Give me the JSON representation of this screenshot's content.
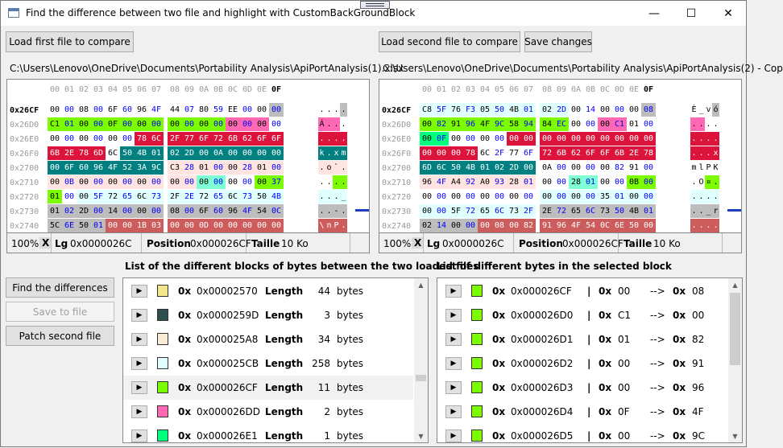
{
  "window": {
    "title": "Find the difference between two file and highlight with CustomBackGroundBlock",
    "minimize_glyph": "—",
    "maximize_glyph": "☐",
    "close_glyph": "✕"
  },
  "buttons": {
    "load_first": "Load first file to compare",
    "load_second": "Load second file to compare",
    "save_changes": "Save changes",
    "find_differences": "Find the differences",
    "save_to_file": "Save to file",
    "patch_second": "Patch second file"
  },
  "left": {
    "path": "C:\\Users\\Lenovo\\OneDrive\\Documents\\Portability Analysis\\ApiPortAnalysis(1).xlsx",
    "columns": [
      "00",
      "01",
      "02",
      "03",
      "04",
      "05",
      "06",
      "07",
      "08",
      "09",
      "0A",
      "0B",
      "0C",
      "0D",
      "0E",
      "0F"
    ],
    "rows": [
      {
        "offset": "0x26CF",
        "bytes": [
          "00",
          "00",
          "08",
          "00",
          "6F",
          "60",
          "96",
          "4F",
          "44",
          "07",
          "80",
          "59",
          "EE",
          "00",
          "00",
          "00"
        ],
        "bg": [
          "#ffffff",
          "#ffffff",
          "#ffffff",
          "#ffffff",
          "#ffffff",
          "#ffffff",
          "#ffffff",
          "#ffffff",
          "#ffffff",
          "#ffffff",
          "#ffffff",
          "#ffffff",
          "#ffffff",
          "#ffffff",
          "#ffffff",
          "#bdbdbd"
        ],
        "ascii": [
          ".",
          ".",
          ".",
          "."
        ]
      },
      {
        "offset": "0x26D0",
        "bytes": [
          "C1",
          "01",
          "00",
          "00",
          "0F",
          "00",
          "00",
          "00",
          "00",
          "00",
          "00",
          "00",
          "00",
          "00",
          "00",
          "00"
        ],
        "bg": [
          "#7cfc00",
          "#7cfc00",
          "#7cfc00",
          "#7cfc00",
          "#7cfc00",
          "#7cfc00",
          "#7cfc00",
          "#7cfc00",
          "#7cfc00",
          "#7cfc00",
          "#7cfc00",
          "#7cfc00",
          "#ff69b4",
          "#ff69b4",
          "#ff69b4",
          "#ffffff"
        ],
        "ascii": [
          "Á",
          ".",
          ".",
          "."
        ]
      },
      {
        "offset": "0x26E0",
        "bytes": [
          "00",
          "00",
          "00",
          "00",
          "00",
          "00",
          "78",
          "6C",
          "2F",
          "77",
          "6F",
          "72",
          "6B",
          "62",
          "6F",
          "6F"
        ],
        "bg": [
          "#ffffff",
          "#ffffff",
          "#ffffff",
          "#ffffff",
          "#ffffff",
          "#ffffff",
          "#dc143c",
          "#dc143c",
          "#dc143c",
          "#dc143c",
          "#dc143c",
          "#dc143c",
          "#dc143c",
          "#dc143c",
          "#dc143c",
          "#dc143c"
        ],
        "ascii": [
          ".",
          ".",
          ".",
          "."
        ]
      },
      {
        "offset": "0x26F0",
        "bytes": [
          "6B",
          "2E",
          "78",
          "6D",
          "6C",
          "50",
          "4B",
          "01",
          "02",
          "2D",
          "00",
          "0A",
          "00",
          "00",
          "00",
          "00"
        ],
        "bg": [
          "#dc143c",
          "#dc143c",
          "#dc143c",
          "#dc143c",
          "#ffffff",
          "#008080",
          "#008080",
          "#008080",
          "#008080",
          "#008080",
          "#008080",
          "#008080",
          "#008080",
          "#008080",
          "#008080",
          "#008080"
        ],
        "ascii": [
          "k",
          ".",
          "x",
          "m"
        ]
      },
      {
        "offset": "0x2700",
        "bytes": [
          "00",
          "6F",
          "60",
          "96",
          "4F",
          "52",
          "3A",
          "9C",
          "C3",
          "28",
          "01",
          "00",
          "00",
          "28",
          "01",
          "00"
        ],
        "bg": [
          "#008080",
          "#008080",
          "#008080",
          "#008080",
          "#008080",
          "#008080",
          "#008080",
          "#008080",
          "#ffe4e1",
          "#ffe4e1",
          "#ffe4e1",
          "#ffe4e1",
          "#ffe4e1",
          "#ffe4e1",
          "#ffe4e1",
          "#ffe4e1"
        ],
        "ascii": [
          ".",
          "o",
          "`",
          "."
        ]
      },
      {
        "offset": "0x2710",
        "bytes": [
          "00",
          "0B",
          "00",
          "00",
          "00",
          "00",
          "00",
          "00",
          "00",
          "00",
          "00",
          "00",
          "00",
          "00",
          "00",
          "37"
        ],
        "bg": [
          "#ffe4e1",
          "#ffe4e1",
          "#ffe4e1",
          "#ffe4e1",
          "#ffe4e1",
          "#ffe4e1",
          "#ffe4e1",
          "#ffe4e1",
          "#ffe4e1",
          "#ffe4e1",
          "#7fffd4",
          "#7fffd4",
          "#ffffff",
          "#ffffff",
          "#7cfc00",
          "#7cfc00"
        ],
        "ascii": [
          ".",
          ".",
          ".",
          "."
        ]
      },
      {
        "offset": "0x2720",
        "bytes": [
          "01",
          "00",
          "00",
          "5F",
          "72",
          "65",
          "6C",
          "73",
          "2F",
          "2E",
          "72",
          "65",
          "6C",
          "73",
          "50",
          "4B"
        ],
        "bg": [
          "#7cfc00",
          "#ffffff",
          "#e0ffff",
          "#e0ffff",
          "#e0ffff",
          "#e0ffff",
          "#e0ffff",
          "#e0ffff",
          "#e0ffff",
          "#e0ffff",
          "#e0ffff",
          "#e0ffff",
          "#e0ffff",
          "#e0ffff",
          "#e0ffff",
          "#e0ffff"
        ],
        "ascii": [
          ".",
          ".",
          ".",
          "_"
        ]
      },
      {
        "offset": "0x2730",
        "bytes": [
          "01",
          "02",
          "2D",
          "00",
          "14",
          "00",
          "00",
          "00",
          "08",
          "00",
          "6F",
          "60",
          "96",
          "4F",
          "54",
          "0C"
        ],
        "bg": [
          "#bdbdbd",
          "#bdbdbd",
          "#bdbdbd",
          "#bdbdbd",
          "#bdbdbd",
          "#bdbdbd",
          "#bdbdbd",
          "#bdbdbd",
          "#bdbdbd",
          "#bdbdbd",
          "#bdbdbd",
          "#bdbdbd",
          "#bdbdbd",
          "#bdbdbd",
          "#bdbdbd",
          "#bdbdbd"
        ],
        "ascii": [
          ".",
          ".",
          "-",
          "."
        ]
      },
      {
        "offset": "0x2740",
        "bytes": [
          "5C",
          "6E",
          "50",
          "01",
          "00",
          "00",
          "1B",
          "03",
          "00",
          "00",
          "0D",
          "00",
          "00",
          "00",
          "00",
          "00"
        ],
        "bg": [
          "#bdbdbd",
          "#bdbdbd",
          "#bdbdbd",
          "#bdbdbd",
          "#cd5c5c",
          "#cd5c5c",
          "#cd5c5c",
          "#cd5c5c",
          "#cd5c5c",
          "#cd5c5c",
          "#cd5c5c",
          "#cd5c5c",
          "#cd5c5c",
          "#cd5c5c",
          "#cd5c5c",
          "#cd5c5c"
        ],
        "ascii": [
          "\\",
          "n",
          "P",
          "."
        ]
      }
    ],
    "status": {
      "zoom": "100%",
      "close": "X",
      "lg_label": "Lg",
      "lg_value": "0x0000026C",
      "pos_label": "Position",
      "pos_value": "0x000026CF",
      "size_label": "Taille",
      "size_value": "10 Ko"
    }
  },
  "right": {
    "path": "C:\\Users\\Lenovo\\OneDrive\\Documents\\Portability Analysis\\ApiPortAnalysis(2) - Cop",
    "columns": [
      "00",
      "01",
      "02",
      "03",
      "04",
      "05",
      "06",
      "07",
      "08",
      "09",
      "0A",
      "0B",
      "0C",
      "0D",
      "0E",
      "0F"
    ],
    "rows": [
      {
        "offset": "0x26CF",
        "bytes": [
          "C8",
          "5F",
          "76",
          "F3",
          "05",
          "50",
          "4B",
          "01",
          "02",
          "2D",
          "00",
          "14",
          "00",
          "00",
          "00",
          "08"
        ],
        "bg": [
          "#e0ffff",
          "#e0ffff",
          "#e0ffff",
          "#e0ffff",
          "#e0ffff",
          "#e0ffff",
          "#e0ffff",
          "#e0ffff",
          "#e0ffff",
          "#e0ffff",
          "#ffffff",
          "#ffffff",
          "#ffffff",
          "#ffffff",
          "#ffffff",
          "#bdbdbd"
        ],
        "ascii": [
          "È",
          "_",
          "v",
          "ó"
        ]
      },
      {
        "offset": "0x26D0",
        "bytes": [
          "00",
          "82",
          "91",
          "96",
          "4F",
          "9C",
          "58",
          "94",
          "84",
          "EC",
          "00",
          "00",
          "00",
          "C1",
          "01",
          "00"
        ],
        "bg": [
          "#7cfc00",
          "#7cfc00",
          "#7cfc00",
          "#7cfc00",
          "#7cfc00",
          "#7cfc00",
          "#7cfc00",
          "#7cfc00",
          "#7cfc00",
          "#7cfc00",
          "#ffffff",
          "#ffffff",
          "#ff69b4",
          "#ff69b4",
          "#ffffff",
          "#ffffff"
        ],
        "ascii": [
          ".",
          ".",
          ".",
          "."
        ]
      },
      {
        "offset": "0x26E0",
        "bytes": [
          "00",
          "0F",
          "00",
          "00",
          "00",
          "00",
          "00",
          "00",
          "00",
          "00",
          "00",
          "00",
          "00",
          "00",
          "00",
          "00"
        ],
        "bg": [
          "#00ff7f",
          "#00ff7f",
          "#ffffff",
          "#ffffff",
          "#ffffff",
          "#ffffff",
          "#dc143c",
          "#dc143c",
          "#dc143c",
          "#dc143c",
          "#dc143c",
          "#dc143c",
          "#dc143c",
          "#dc143c",
          "#dc143c",
          "#dc143c"
        ],
        "ascii": [
          ".",
          ".",
          ".",
          "."
        ]
      },
      {
        "offset": "0x26F0",
        "bytes": [
          "00",
          "00",
          "00",
          "78",
          "6C",
          "2F",
          "77",
          "6F",
          "72",
          "6B",
          "62",
          "6F",
          "6F",
          "6B",
          "2E",
          "78"
        ],
        "bg": [
          "#dc143c",
          "#dc143c",
          "#dc143c",
          "#dc143c",
          "#ffffff",
          "#ffffff",
          "#ffffff",
          "#ffffff",
          "#dc143c",
          "#dc143c",
          "#dc143c",
          "#dc143c",
          "#dc143c",
          "#dc143c",
          "#dc143c",
          "#dc143c"
        ],
        "ascii": [
          ".",
          ".",
          ".",
          "x"
        ]
      },
      {
        "offset": "0x2700",
        "bytes": [
          "6D",
          "6C",
          "50",
          "4B",
          "01",
          "02",
          "2D",
          "00",
          "0A",
          "00",
          "00",
          "00",
          "00",
          "82",
          "91",
          "00"
        ],
        "bg": [
          "#008080",
          "#008080",
          "#008080",
          "#008080",
          "#008080",
          "#008080",
          "#008080",
          "#008080",
          "#ffffff",
          "#ffffff",
          "#ffffff",
          "#ffffff",
          "#ffffff",
          "#ffffff",
          "#ffffff",
          "#ffffff"
        ],
        "ascii": [
          "m",
          "l",
          "P",
          "K"
        ]
      },
      {
        "offset": "0x2710",
        "bytes": [
          "96",
          "4F",
          "A4",
          "92",
          "A0",
          "93",
          "28",
          "01",
          "00",
          "00",
          "28",
          "01",
          "00",
          "00",
          "0B",
          "00"
        ],
        "bg": [
          "#ffe4e1",
          "#ffe4e1",
          "#ffe4e1",
          "#ffe4e1",
          "#ffe4e1",
          "#ffe4e1",
          "#ffe4e1",
          "#ffe4e1",
          "#ffffff",
          "#ffffff",
          "#7fffd4",
          "#7fffd4",
          "#ffffff",
          "#ffffff",
          "#7cfc00",
          "#7cfc00"
        ],
        "ascii": [
          ".",
          "O",
          "¤",
          "."
        ]
      },
      {
        "offset": "0x2720",
        "bytes": [
          "00",
          "00",
          "00",
          "00",
          "00",
          "00",
          "00",
          "00",
          "00",
          "00",
          "00",
          "00",
          "35",
          "01",
          "00",
          "00"
        ],
        "bg": [
          "#ffffff",
          "#ffffff",
          "#ffffff",
          "#ffffff",
          "#ffffff",
          "#ffffff",
          "#ffffff",
          "#ffffff",
          "#e0ffff",
          "#e0ffff",
          "#e0ffff",
          "#e0ffff",
          "#e0ffff",
          "#e0ffff",
          "#e0ffff",
          "#e0ffff"
        ],
        "ascii": [
          ".",
          ".",
          ".",
          "."
        ]
      },
      {
        "offset": "0x2730",
        "bytes": [
          "00",
          "00",
          "5F",
          "72",
          "65",
          "6C",
          "73",
          "2F",
          "2E",
          "72",
          "65",
          "6C",
          "73",
          "50",
          "4B",
          "01"
        ],
        "bg": [
          "#e0ffff",
          "#e0ffff",
          "#e0ffff",
          "#e0ffff",
          "#e0ffff",
          "#e0ffff",
          "#e0ffff",
          "#e0ffff",
          "#bdbdbd",
          "#bdbdbd",
          "#bdbdbd",
          "#bdbdbd",
          "#bdbdbd",
          "#bdbdbd",
          "#bdbdbd",
          "#bdbdbd"
        ],
        "ascii": [
          ".",
          ".",
          "_",
          "r"
        ]
      },
      {
        "offset": "0x2740",
        "bytes": [
          "02",
          "14",
          "00",
          "00",
          "00",
          "08",
          "00",
          "82",
          "91",
          "96",
          "4F",
          "54",
          "0C",
          "6E",
          "50",
          "00"
        ],
        "bg": [
          "#bdbdbd",
          "#bdbdbd",
          "#bdbdbd",
          "#bdbdbd",
          "#cd5c5c",
          "#cd5c5c",
          "#cd5c5c",
          "#cd5c5c",
          "#cd5c5c",
          "#cd5c5c",
          "#cd5c5c",
          "#cd5c5c",
          "#cd5c5c",
          "#cd5c5c",
          "#cd5c5c",
          "#cd5c5c"
        ],
        "ascii": [
          ".",
          ".",
          ".",
          "."
        ]
      }
    ],
    "status": {
      "zoom": "100%",
      "close": "X",
      "lg_label": "Lg",
      "lg_value": "0x0000026C",
      "pos_label": "Position",
      "pos_value": "0x000026CF",
      "size_label": "Taille",
      "size_value": "10 Ko"
    }
  },
  "blocks": {
    "heading": "List of the different blocks of bytes between the two loaded files",
    "items": [
      {
        "color": "#f0e68c",
        "prefix": "0x",
        "address": "0x00002570",
        "len_label": "Length",
        "length": "44",
        "unit": "bytes"
      },
      {
        "color": "#2f4f4f",
        "prefix": "0x",
        "address": "0x0000259D",
        "len_label": "Length",
        "length": "3",
        "unit": "bytes"
      },
      {
        "color": "#faebd7",
        "prefix": "0x",
        "address": "0x000025A8",
        "len_label": "Length",
        "length": "34",
        "unit": "bytes"
      },
      {
        "color": "#e0ffff",
        "prefix": "0x",
        "address": "0x000025CB",
        "len_label": "Length",
        "length": "258",
        "unit": "bytes"
      },
      {
        "color": "#7cfc00",
        "prefix": "0x",
        "address": "0x000026CF",
        "len_label": "Length",
        "length": "11",
        "unit": "bytes"
      },
      {
        "color": "#ff69b4",
        "prefix": "0x",
        "address": "0x000026DD",
        "len_label": "Length",
        "length": "2",
        "unit": "bytes"
      },
      {
        "color": "#00ff7f",
        "prefix": "0x",
        "address": "0x000026E1",
        "len_label": "Length",
        "length": "1",
        "unit": "bytes"
      }
    ]
  },
  "bytes": {
    "heading": "List of different bytes in the selected block",
    "items": [
      {
        "color": "#7cfc00",
        "prefix": "0x",
        "address": "0x000026CF",
        "sep": "|",
        "p1": "0x",
        "from": "00",
        "arrow": "-->",
        "p2": "0x",
        "to": "08"
      },
      {
        "color": "#7cfc00",
        "prefix": "0x",
        "address": "0x000026D0",
        "sep": "|",
        "p1": "0x",
        "from": "C1",
        "arrow": "-->",
        "p2": "0x",
        "to": "00"
      },
      {
        "color": "#7cfc00",
        "prefix": "0x",
        "address": "0x000026D1",
        "sep": "|",
        "p1": "0x",
        "from": "01",
        "arrow": "-->",
        "p2": "0x",
        "to": "82"
      },
      {
        "color": "#7cfc00",
        "prefix": "0x",
        "address": "0x000026D2",
        "sep": "|",
        "p1": "0x",
        "from": "00",
        "arrow": "-->",
        "p2": "0x",
        "to": "91"
      },
      {
        "color": "#7cfc00",
        "prefix": "0x",
        "address": "0x000026D3",
        "sep": "|",
        "p1": "0x",
        "from": "00",
        "arrow": "-->",
        "p2": "0x",
        "to": "96"
      },
      {
        "color": "#7cfc00",
        "prefix": "0x",
        "address": "0x000026D4",
        "sep": "|",
        "p1": "0x",
        "from": "0F",
        "arrow": "-->",
        "p2": "0x",
        "to": "4F"
      },
      {
        "color": "#7cfc00",
        "prefix": "0x",
        "address": "0x000026D5",
        "sep": "|",
        "p1": "0x",
        "from": "00",
        "arrow": "-->",
        "p2": "0x",
        "to": "9C"
      }
    ]
  },
  "icons": {
    "play": "play-icon",
    "scroll_up": "▲",
    "scroll_down": "▼"
  },
  "colors": {
    "accent_blue": "#0000ff",
    "selected_row": "#f2f2f2"
  }
}
